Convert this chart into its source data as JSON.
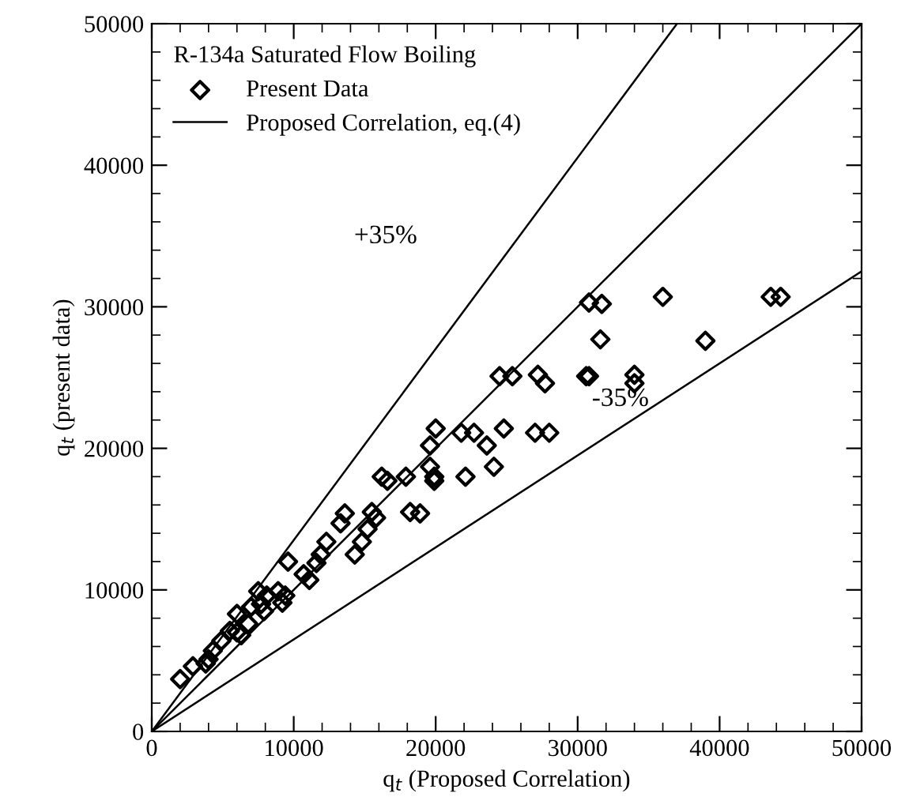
{
  "chart_data": {
    "type": "scatter",
    "legend_title": "R-134a Saturated Flow Boiling",
    "xlabel": "q$_{t}$ (Proposed Correlation)",
    "ylabel": "q$_{t}$ (present data)",
    "xlim": [
      0,
      50000
    ],
    "ylim": [
      0,
      50000
    ],
    "xticks": [
      0,
      10000,
      20000,
      30000,
      40000,
      50000
    ],
    "yticks": [
      0,
      10000,
      20000,
      30000,
      40000,
      50000
    ],
    "grid": false,
    "legend": "top left",
    "annotations": [
      "+35%",
      "-35%"
    ],
    "series": [
      {
        "name": "Present Data",
        "marker": "diamond",
        "color": "#000000",
        "x": [
          2000,
          2900,
          3800,
          4000,
          4300,
          4900,
          5500,
          6000,
          6000,
          6300,
          6800,
          7000,
          7500,
          7700,
          7900,
          8100,
          8900,
          9200,
          9400,
          9600,
          10700,
          11100,
          11600,
          11900,
          12300,
          14300,
          14800,
          13300,
          13600,
          15200,
          15500,
          15800,
          18200,
          18900,
          16200,
          16600,
          17900,
          19600,
          19900,
          19900,
          19600,
          20000,
          21800,
          22700,
          23600,
          22100,
          24100,
          24800,
          27000,
          28000,
          24500,
          25400,
          27200,
          27700,
          30600,
          30800,
          30800,
          31700,
          31600,
          36000,
          39000,
          34000,
          34000,
          43600,
          44300
        ],
        "values": [
          3700,
          4600,
          4800,
          5100,
          5700,
          6400,
          7100,
          7000,
          8300,
          6800,
          7600,
          8800,
          9900,
          9000,
          8500,
          9600,
          9900,
          9100,
          9600,
          12000,
          11100,
          10700,
          11900,
          12500,
          13400,
          12500,
          13400,
          14700,
          15400,
          14300,
          15500,
          15100,
          15500,
          15400,
          18000,
          17700,
          18000,
          18700,
          18000,
          17700,
          20200,
          21400,
          21100,
          21100,
          20200,
          18000,
          18700,
          21400,
          21100,
          21100,
          25100,
          25100,
          25200,
          24600,
          25100,
          25100,
          30300,
          30200,
          27700,
          30700,
          27600,
          25200,
          24600,
          30700,
          30700
        ]
      },
      {
        "name": "Proposed Correlation, eq.(4)",
        "type": "line",
        "line_style": "solid",
        "color": "#000000",
        "x": [
          0,
          50000
        ],
        "values": [
          0,
          50000
        ]
      },
      {
        "type": "line",
        "line_style": "solid",
        "color": "#000000",
        "x": [
          0,
          37000
        ],
        "values": [
          0,
          50000
        ]
      },
      {
        "type": "line",
        "line_style": "solid",
        "color": "#000000",
        "x": [
          0,
          50000
        ],
        "values": [
          0,
          32500
        ]
      }
    ]
  }
}
